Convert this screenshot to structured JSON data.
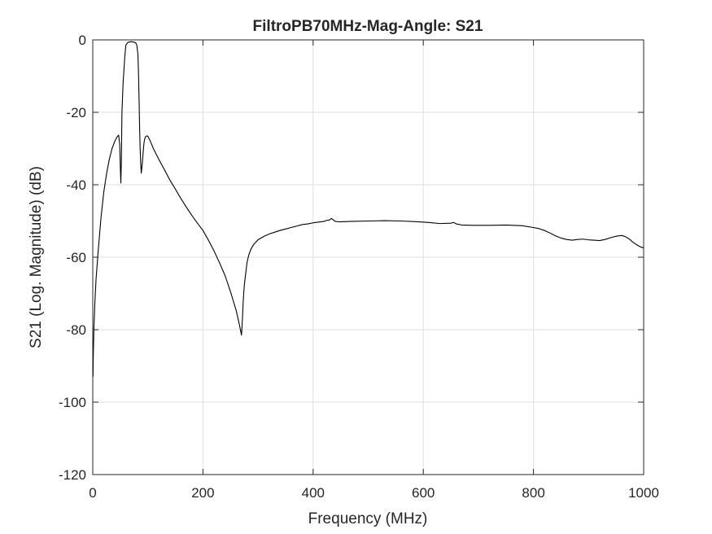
{
  "chart_data": {
    "type": "line",
    "title": "FiltroPB70MHz-Mag-Angle: S21",
    "xlabel": "Frequency (MHz)",
    "ylabel": "S21 (Log. Magnitude) (dB)",
    "xlim": [
      0,
      1000
    ],
    "ylim": [
      -120,
      0
    ],
    "xticks": [
      0,
      200,
      400,
      600,
      800,
      1000
    ],
    "yticks": [
      0,
      -20,
      -40,
      -60,
      -80,
      -100,
      -120
    ],
    "xtick_labels": [
      "0",
      "200",
      "400",
      "600",
      "800",
      "1000"
    ],
    "ytick_labels": [
      "0",
      "-20",
      "-40",
      "-60",
      "-80",
      "-100",
      "-120"
    ],
    "grid": true,
    "series": [
      {
        "color": "#000000",
        "x": [
          0.5,
          1,
          2,
          4,
          6,
          10,
          15,
          20,
          25,
          30,
          35,
          40,
          44,
          47,
          49,
          50,
          51,
          52,
          53,
          55,
          58,
          60,
          63,
          66,
          70,
          74,
          78,
          80,
          82,
          83,
          84,
          85,
          86,
          87,
          88,
          90,
          92,
          93,
          94,
          95,
          96,
          98,
          100,
          103,
          106,
          110,
          120,
          130,
          140,
          150,
          160,
          170,
          180,
          190,
          200,
          210,
          220,
          230,
          240,
          250,
          255,
          260,
          263,
          266,
          268,
          270,
          271,
          272,
          273,
          274,
          275,
          276,
          278,
          280,
          283,
          287,
          292,
          300,
          310,
          320,
          330,
          340,
          350,
          360,
          370,
          380,
          390,
          400,
          410,
          420,
          425,
          430,
          433,
          436,
          440,
          445,
          450,
          470,
          500,
          530,
          560,
          590,
          610,
          630,
          650,
          655,
          660,
          670,
          690,
          720,
          750,
          780,
          800,
          810,
          820,
          830,
          840,
          850,
          860,
          870,
          880,
          890,
          900,
          910,
          920,
          930,
          940,
          950,
          960,
          965,
          970,
          975,
          980,
          985,
          990,
          995,
          1000
        ],
        "y": [
          -93,
          -87,
          -80,
          -72,
          -66,
          -58,
          -49,
          -42,
          -37,
          -33,
          -30,
          -28,
          -26.8,
          -26.3,
          -29,
          -35,
          -39.5,
          -33,
          -20,
          -12,
          -5,
          -1.5,
          -0.8,
          -0.6,
          -0.5,
          -0.6,
          -0.8,
          -1.5,
          -4,
          -9,
          -16,
          -24,
          -30,
          -34,
          -36.8,
          -34,
          -30,
          -28.5,
          -27.5,
          -27,
          -26.7,
          -26.5,
          -26.6,
          -27.5,
          -28.5,
          -30,
          -33,
          -35.8,
          -38.7,
          -41.2,
          -43.8,
          -46.2,
          -48.5,
          -50.6,
          -52.6,
          -55.3,
          -58.2,
          -61.5,
          -65,
          -69.5,
          -72,
          -74.5,
          -76.5,
          -78.5,
          -80,
          -81.5,
          -79,
          -76,
          -72.5,
          -70,
          -68,
          -66.5,
          -64,
          -61.5,
          -59.5,
          -57.8,
          -56.5,
          -55.2,
          -54.3,
          -53.6,
          -53.1,
          -52.6,
          -52.2,
          -51.8,
          -51.4,
          -51,
          -50.8,
          -50.5,
          -50.3,
          -50.1,
          -49.8,
          -49.7,
          -49.3,
          -49.6,
          -50.1,
          -50.2,
          -50.2,
          -50.1,
          -50,
          -49.9,
          -50,
          -50.2,
          -50.4,
          -50.7,
          -50.6,
          -50.4,
          -50.8,
          -51.1,
          -51.2,
          -51.2,
          -51.1,
          -51.3,
          -51.8,
          -52.1,
          -52.6,
          -53.3,
          -54.1,
          -54.7,
          -55.1,
          -55.3,
          -55.1,
          -55,
          -55.2,
          -55.3,
          -55.4,
          -55.1,
          -54.6,
          -54.2,
          -54.0,
          -54.2,
          -54.6,
          -55.1,
          -55.8,
          -56.3,
          -56.8,
          -57.2,
          -57.4
        ]
      }
    ]
  }
}
